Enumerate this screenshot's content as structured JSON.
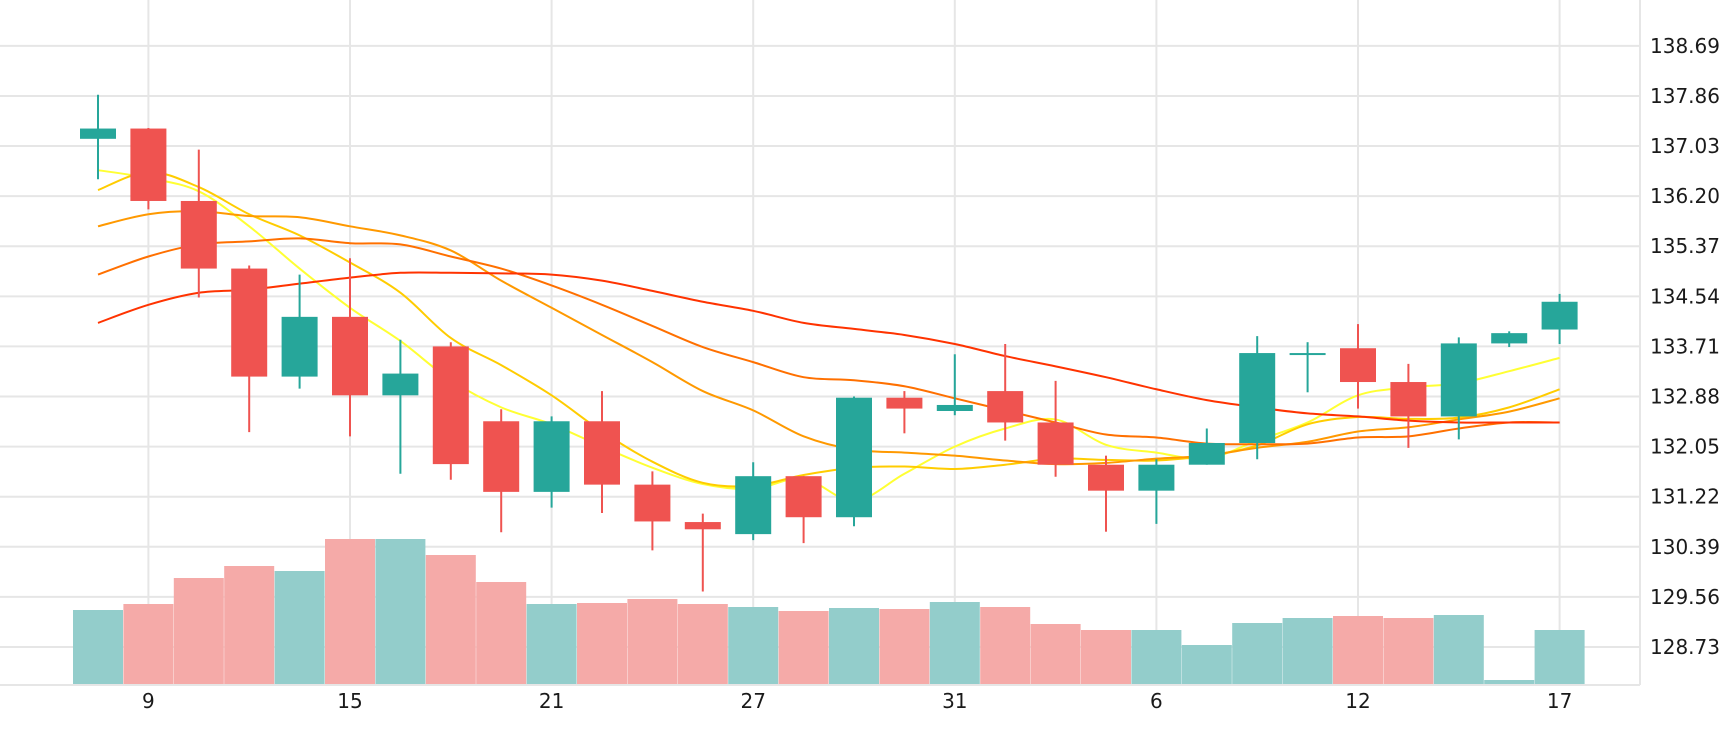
{
  "colors": {
    "up": "#26a69a",
    "down": "#ef5350",
    "up_volume": "#93cdcb",
    "down_volume": "#f5aaa8",
    "grid": "#e6e6e6",
    "ma": [
      "#ffff33",
      "#ffcc00",
      "#ff9900",
      "#ff7000",
      "#ff3300"
    ]
  },
  "chart_data": {
    "type": "candlestick",
    "yaxis": {
      "position": "right",
      "ticks": [
        "138.69",
        "137.86",
        "137.03",
        "136.20",
        "135.37",
        "134.54",
        "133.71",
        "132.88",
        "132.05",
        "131.22",
        "130.39",
        "129.56",
        "128.73"
      ],
      "ylim": [
        128.1,
        139.45
      ]
    },
    "xaxis": {
      "ticks": [
        {
          "label": "9",
          "index": 1
        },
        {
          "label": "15",
          "index": 5
        },
        {
          "label": "21",
          "index": 9
        },
        {
          "label": "27",
          "index": 13
        },
        {
          "label": "31",
          "index": 17
        },
        {
          "label": "6",
          "index": 21
        },
        {
          "label": "12",
          "index": 25
        },
        {
          "label": "17",
          "index": 29
        }
      ]
    },
    "grid": true,
    "candles": [
      {
        "o": 137.15,
        "h": 137.88,
        "l": 136.48,
        "c": 137.32,
        "v": 0.375
      },
      {
        "o": 137.32,
        "h": 137.33,
        "l": 135.98,
        "c": 136.12,
        "v": 0.405
      },
      {
        "o": 136.12,
        "h": 136.97,
        "l": 134.52,
        "c": 135.0,
        "v": 0.535
      },
      {
        "o": 135.0,
        "h": 135.05,
        "l": 132.29,
        "c": 133.21,
        "v": 0.595
      },
      {
        "o": 133.21,
        "h": 134.9,
        "l": 133.01,
        "c": 134.2,
        "v": 0.57
      },
      {
        "o": 134.2,
        "h": 135.17,
        "l": 132.22,
        "c": 132.9,
        "v": 0.73
      },
      {
        "o": 132.9,
        "h": 133.82,
        "l": 131.6,
        "c": 133.26,
        "v": 0.73
      },
      {
        "o": 133.71,
        "h": 133.78,
        "l": 131.5,
        "c": 131.76,
        "v": 0.65
      },
      {
        "o": 132.47,
        "h": 132.67,
        "l": 130.63,
        "c": 131.3,
        "v": 0.515
      },
      {
        "o": 131.3,
        "h": 132.55,
        "l": 131.04,
        "c": 132.47,
        "v": 0.405
      },
      {
        "o": 132.47,
        "h": 132.97,
        "l": 130.95,
        "c": 131.42,
        "v": 0.41
      },
      {
        "o": 131.42,
        "h": 131.64,
        "l": 130.33,
        "c": 130.81,
        "v": 0.43
      },
      {
        "o": 130.8,
        "h": 130.94,
        "l": 129.65,
        "c": 130.68,
        "v": 0.405
      },
      {
        "o": 130.6,
        "h": 131.79,
        "l": 130.5,
        "c": 131.56,
        "v": 0.39
      },
      {
        "o": 131.56,
        "h": 131.56,
        "l": 130.45,
        "c": 130.88,
        "v": 0.37
      },
      {
        "o": 130.88,
        "h": 132.88,
        "l": 130.73,
        "c": 132.86,
        "v": 0.385
      },
      {
        "o": 132.86,
        "h": 132.97,
        "l": 132.27,
        "c": 132.68,
        "v": 0.38
      },
      {
        "o": 132.64,
        "h": 133.58,
        "l": 132.57,
        "c": 132.74,
        "v": 0.415
      },
      {
        "o": 132.97,
        "h": 133.75,
        "l": 132.15,
        "c": 132.45,
        "v": 0.39
      },
      {
        "o": 132.45,
        "h": 133.14,
        "l": 131.55,
        "c": 131.75,
        "v": 0.305
      },
      {
        "o": 131.75,
        "h": 131.9,
        "l": 130.64,
        "c": 131.32,
        "v": 0.275
      },
      {
        "o": 131.32,
        "h": 131.84,
        "l": 130.77,
        "c": 131.75,
        "v": 0.275
      },
      {
        "o": 131.75,
        "h": 132.35,
        "l": 131.75,
        "c": 132.11,
        "v": 0.2
      },
      {
        "o": 132.11,
        "h": 133.88,
        "l": 131.84,
        "c": 133.6,
        "v": 0.31
      },
      {
        "o": 133.6,
        "h": 133.78,
        "l": 132.95,
        "c": 133.6,
        "v": 0.335
      },
      {
        "o": 133.68,
        "h": 134.08,
        "l": 132.68,
        "c": 133.12,
        "v": 0.345
      },
      {
        "o": 133.12,
        "h": 133.42,
        "l": 132.03,
        "c": 132.55,
        "v": 0.335
      },
      {
        "o": 132.55,
        "h": 133.86,
        "l": 132.17,
        "c": 133.76,
        "v": 0.35
      },
      {
        "o": 133.76,
        "h": 133.96,
        "l": 133.7,
        "c": 133.93,
        "v": 0.025
      },
      {
        "o": 133.99,
        "h": 134.58,
        "l": 133.75,
        "c": 134.45,
        "v": 0.275
      }
    ],
    "moving_averages": [
      {
        "start": 0,
        "values": [
          136.63,
          136.5,
          136.28,
          135.7,
          135.0,
          134.35,
          133.8,
          133.15,
          132.7,
          132.42,
          132.05,
          131.7,
          131.43,
          131.35,
          131.52,
          131.15,
          131.6,
          132.05,
          132.35,
          132.5,
          132.08,
          131.95,
          131.85,
          132.15,
          132.45,
          132.9,
          133.03,
          133.1,
          133.3,
          133.52
        ]
      },
      {
        "start": 0,
        "values": [
          136.3,
          136.6,
          136.35,
          135.9,
          135.55,
          135.1,
          134.6,
          133.85,
          133.4,
          132.9,
          132.3,
          131.8,
          131.45,
          131.4,
          131.58,
          131.7,
          131.72,
          131.68,
          131.75,
          131.85,
          131.83,
          131.82,
          131.9,
          132.07,
          132.42,
          132.54,
          132.51,
          132.53,
          132.7,
          133.0
        ]
      },
      {
        "start": 0,
        "values": [
          135.7,
          135.9,
          135.95,
          135.87,
          135.85,
          135.7,
          135.55,
          135.3,
          134.8,
          134.35,
          133.9,
          133.45,
          132.97,
          132.65,
          132.22,
          132.0,
          131.95,
          131.9,
          131.82,
          131.76,
          131.78,
          131.85,
          131.9,
          132.03,
          132.13,
          132.3,
          132.37,
          132.5,
          132.63,
          132.85
        ]
      },
      {
        "start": 0,
        "values": [
          134.9,
          135.2,
          135.4,
          135.45,
          135.5,
          135.42,
          135.4,
          135.2,
          135.0,
          134.72,
          134.4,
          134.05,
          133.7,
          133.45,
          133.2,
          133.15,
          133.05,
          132.85,
          132.65,
          132.45,
          132.25,
          132.2,
          132.1,
          132.09,
          132.1,
          132.2,
          132.22,
          132.35,
          132.45,
          132.45
        ]
      },
      {
        "start": 0,
        "values": [
          134.1,
          134.4,
          134.6,
          134.65,
          134.75,
          134.85,
          134.93,
          134.93,
          134.92,
          134.9,
          134.8,
          134.63,
          134.45,
          134.3,
          134.1,
          134.0,
          133.9,
          133.75,
          133.55,
          133.38,
          133.2,
          133.0,
          132.82,
          132.7,
          132.6,
          132.55,
          132.48,
          132.45,
          132.45,
          132.45
        ]
      }
    ],
    "volume_max": 1.0
  }
}
